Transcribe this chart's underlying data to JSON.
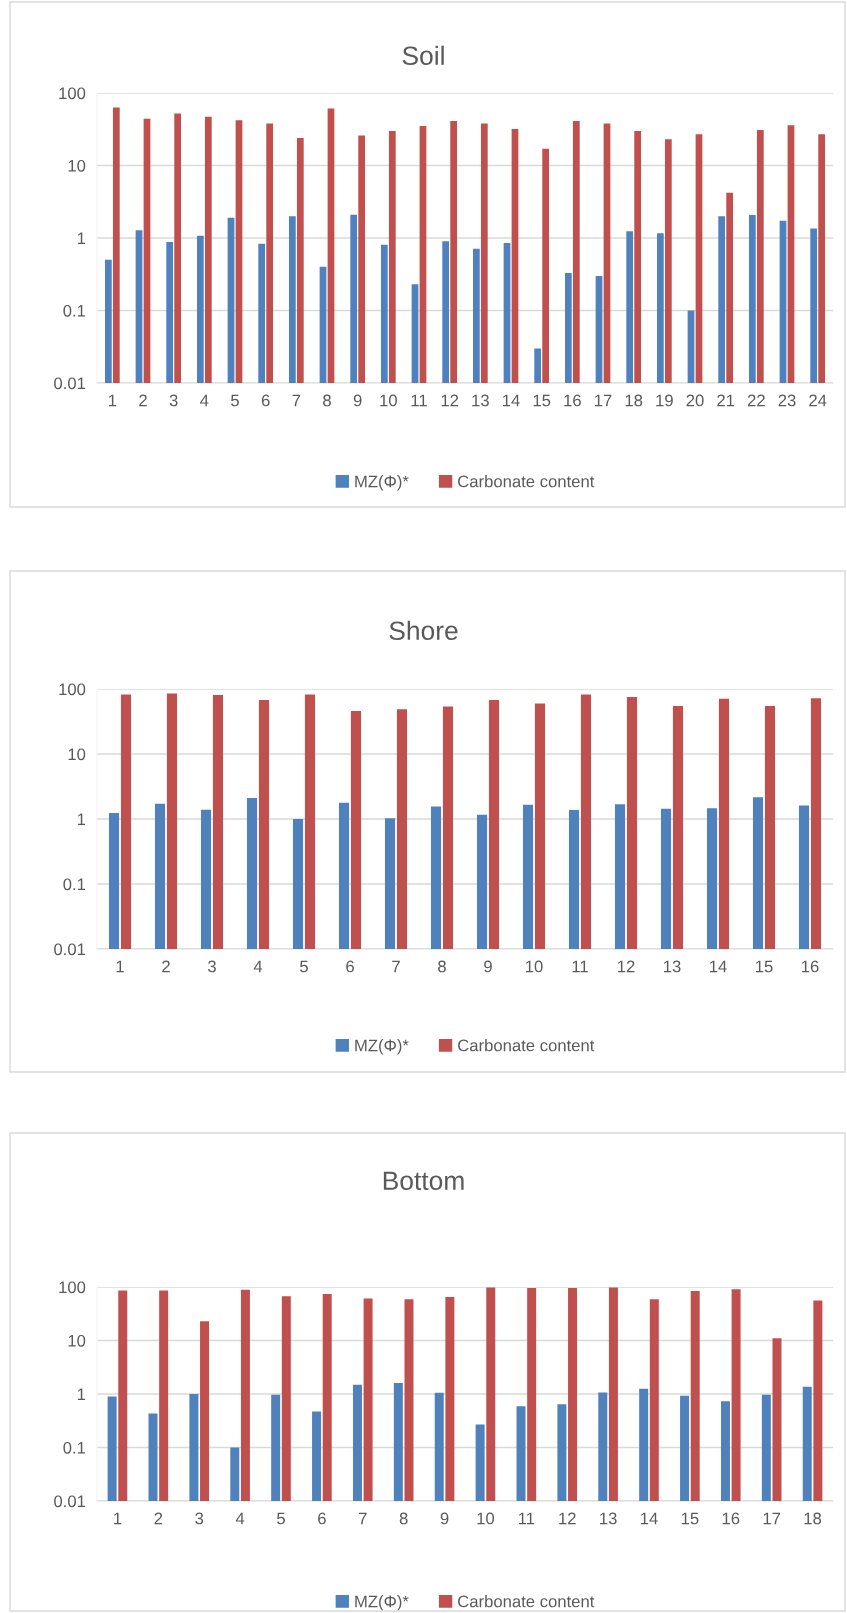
{
  "chart_data": [
    {
      "type": "bar",
      "title": "Soil",
      "log": "y",
      "grid": "y",
      "legend": "bottom",
      "ylim": [
        0.01,
        100
      ],
      "yticks": [
        0.01,
        0.1,
        1,
        10,
        100
      ],
      "categories": [
        "1",
        "2",
        "3",
        "4",
        "5",
        "6",
        "7",
        "8",
        "9",
        "10",
        "11",
        "12",
        "13",
        "14",
        "15",
        "16",
        "17",
        "18",
        "19",
        "20",
        "21",
        "22",
        "23",
        "24"
      ],
      "series": [
        {
          "name": "MZ(Φ)*",
          "color": "#4f81bd",
          "values": [
            0.5,
            1.28,
            0.88,
            1.07,
            1.9,
            0.83,
            2.0,
            0.4,
            2.1,
            0.81,
            0.23,
            0.9,
            0.71,
            0.85,
            0.03,
            0.33,
            0.3,
            1.24,
            1.16,
            0.1,
            2.0,
            2.07,
            1.73,
            1.35
          ]
        },
        {
          "name": "Carbonate content",
          "color": "#c0504d",
          "values": [
            63,
            44,
            52,
            47,
            42,
            38,
            24,
            61,
            26,
            30,
            35,
            41,
            38,
            32,
            17,
            41,
            38,
            30,
            23,
            27,
            4.2,
            31,
            36,
            27
          ]
        }
      ]
    },
    {
      "type": "bar",
      "title": "Shore",
      "log": "y",
      "grid": "y",
      "legend": "bottom",
      "ylim": [
        0.01,
        100
      ],
      "yticks": [
        0.01,
        0.1,
        1,
        10,
        100
      ],
      "categories": [
        "1",
        "2",
        "3",
        "4",
        "5",
        "6",
        "7",
        "8",
        "9",
        "10",
        "11",
        "12",
        "13",
        "14",
        "15",
        "16"
      ],
      "series": [
        {
          "name": "MZ(Φ)*",
          "color": "#4f81bd",
          "values": [
            1.24,
            1.72,
            1.39,
            2.1,
            1.0,
            1.78,
            1.03,
            1.56,
            1.16,
            1.66,
            1.37,
            1.69,
            1.44,
            1.46,
            2.17,
            1.61
          ]
        },
        {
          "name": "Carbonate content",
          "color": "#c0504d",
          "values": [
            82,
            85,
            81,
            68,
            82,
            46,
            49,
            54,
            68,
            60,
            82,
            75,
            55,
            71,
            55,
            72
          ]
        }
      ]
    },
    {
      "type": "bar",
      "title": "Bottom",
      "log": "y",
      "grid": "y",
      "legend": "bottom",
      "ylim": [
        0.01,
        100
      ],
      "yticks": [
        0.01,
        0.1,
        1,
        10,
        100
      ],
      "categories": [
        "1",
        "2",
        "3",
        "4",
        "5",
        "6",
        "7",
        "8",
        "9",
        "10",
        "11",
        "12",
        "13",
        "14",
        "15",
        "16",
        "17",
        "18"
      ],
      "series": [
        {
          "name": "MZ(Φ)*",
          "color": "#4f81bd",
          "values": [
            0.9,
            0.43,
            1.0,
            0.1,
            0.97,
            0.47,
            1.49,
            1.6,
            1.05,
            0.27,
            0.59,
            0.64,
            1.07,
            1.25,
            0.93,
            0.73,
            0.97,
            1.37
          ]
        },
        {
          "name": "Carbonate content",
          "color": "#c0504d",
          "values": [
            86,
            86,
            23,
            89,
            67,
            74,
            61,
            59,
            65,
            98,
            96,
            96,
            98,
            59,
            84,
            91,
            11,
            56
          ]
        }
      ]
    }
  ]
}
